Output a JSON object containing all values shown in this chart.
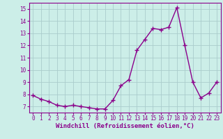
{
  "x": [
    0,
    1,
    2,
    3,
    4,
    5,
    6,
    7,
    8,
    9,
    10,
    11,
    12,
    13,
    14,
    15,
    16,
    17,
    18,
    19,
    20,
    21,
    22,
    23
  ],
  "y": [
    7.9,
    7.6,
    7.4,
    7.1,
    7.0,
    7.1,
    7.0,
    6.9,
    6.8,
    6.8,
    7.5,
    8.7,
    9.2,
    11.6,
    12.5,
    13.4,
    13.3,
    13.5,
    15.1,
    12.0,
    9.0,
    7.7,
    8.1,
    9.0
  ],
  "line_color": "#8b008b",
  "marker": "+",
  "marker_size": 4,
  "line_width": 1.0,
  "bg_color": "#cceee8",
  "grid_color": "#aacccc",
  "xlabel": "Windchill (Refroidissement éolien,°C)",
  "xlabel_color": "#8b008b",
  "xlabel_fontsize": 6.5,
  "tick_color": "#8b008b",
  "tick_fontsize": 5.5,
  "ylim": [
    6.5,
    15.5
  ],
  "xlim": [
    -0.5,
    23.5
  ],
  "yticks": [
    7,
    8,
    9,
    10,
    11,
    12,
    13,
    14,
    15
  ],
  "xticks": [
    0,
    1,
    2,
    3,
    4,
    5,
    6,
    7,
    8,
    9,
    10,
    11,
    12,
    13,
    14,
    15,
    16,
    17,
    18,
    19,
    20,
    21,
    22,
    23
  ]
}
